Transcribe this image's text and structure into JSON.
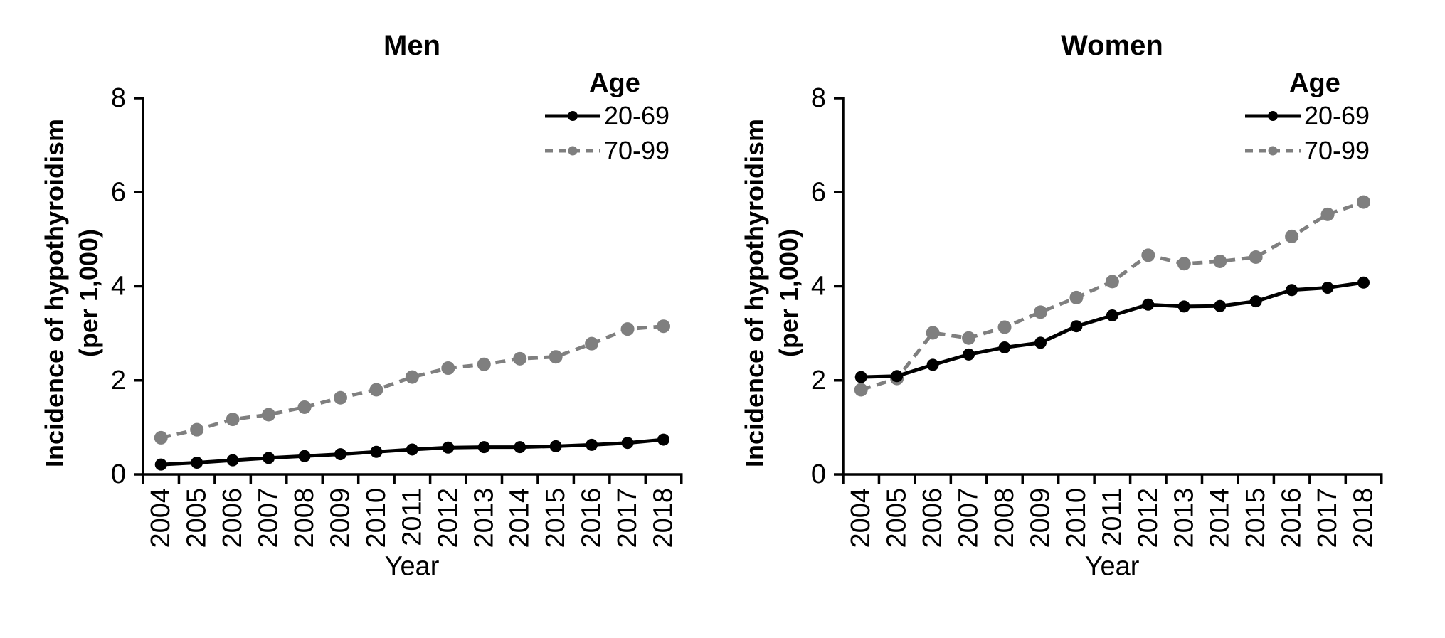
{
  "figure_type": "two-panel line chart",
  "chart_data": [
    {
      "type": "line",
      "title": "Men",
      "ylabel_line1": "Incidence of hypothyroidism",
      "ylabel_line2": "(per 1,000)",
      "xlabel": "Year",
      "legend_title": "Age",
      "legend_position": "top-right-inside",
      "grid": false,
      "ylim": [
        0,
        8
      ],
      "yticks": [
        0,
        2,
        4,
        6,
        8
      ],
      "x": [
        2004,
        2005,
        2006,
        2007,
        2008,
        2009,
        2010,
        2011,
        2012,
        2013,
        2014,
        2015,
        2016,
        2017,
        2018
      ],
      "series": [
        {
          "name": "70-99",
          "color": "#7f7f7f",
          "style": "dashed",
          "marker": "circle",
          "values": [
            0.78,
            0.95,
            1.17,
            1.27,
            1.43,
            1.63,
            1.8,
            2.07,
            2.26,
            2.34,
            2.46,
            2.5,
            2.78,
            3.09,
            3.15
          ]
        },
        {
          "name": "20-69",
          "color": "#000000",
          "style": "solid",
          "marker": "circle",
          "values": [
            0.21,
            0.25,
            0.3,
            0.35,
            0.39,
            0.43,
            0.48,
            0.53,
            0.57,
            0.58,
            0.58,
            0.6,
            0.63,
            0.67,
            0.74
          ]
        }
      ]
    },
    {
      "type": "line",
      "title": "Women",
      "ylabel_line1": "Incidence of hypothyroidism",
      "ylabel_line2": "(per 1,000)",
      "xlabel": "Year",
      "legend_title": "Age",
      "legend_position": "top-right-inside",
      "grid": false,
      "ylim": [
        0,
        8
      ],
      "yticks": [
        0,
        2,
        4,
        6,
        8
      ],
      "x": [
        2004,
        2005,
        2006,
        2007,
        2008,
        2009,
        2010,
        2011,
        2012,
        2013,
        2014,
        2015,
        2016,
        2017,
        2018
      ],
      "series": [
        {
          "name": "70-99",
          "color": "#7f7f7f",
          "style": "dashed",
          "marker": "circle",
          "values": [
            1.8,
            2.04,
            3.01,
            2.9,
            3.13,
            3.45,
            3.76,
            4.1,
            4.66,
            4.48,
            4.53,
            4.62,
            5.06,
            5.53,
            5.79
          ]
        },
        {
          "name": "20-69",
          "color": "#000000",
          "style": "solid",
          "marker": "circle",
          "values": [
            2.07,
            2.09,
            2.33,
            2.55,
            2.7,
            2.8,
            3.15,
            3.38,
            3.61,
            3.57,
            3.58,
            3.68,
            3.92,
            3.97,
            4.08
          ]
        }
      ]
    }
  ],
  "legend_display_order": [
    "20-69",
    "70-99"
  ]
}
